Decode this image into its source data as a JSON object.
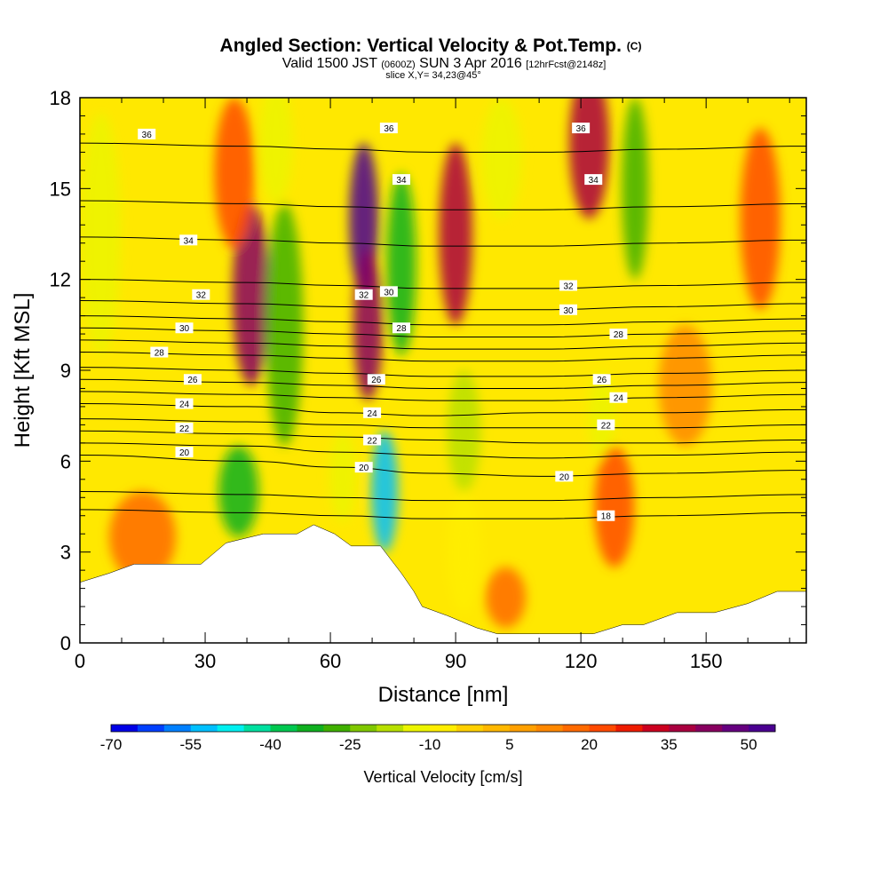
{
  "header": {
    "title_main": "Angled Section: Vertical Velocity & Pot.Temp.",
    "title_unit": "(C)",
    "valid_prefix": "Valid 1500 JST",
    "valid_utc": "(0600Z)",
    "valid_date": "SUN 3 Apr 2016",
    "forecast": "[12hrFcst@2148z]",
    "slice": "slice X,Y= 34,23@45°"
  },
  "chart_data": {
    "type": "heatmap",
    "title": "Angled Section: Vertical Velocity & Pot.Temp. (C)",
    "xlabel": "Distance [nm]",
    "ylabel": "Height [Kft MSL]",
    "xlim": [
      0,
      174
    ],
    "ylim": [
      0,
      18
    ],
    "x_ticks": [
      0,
      30,
      60,
      90,
      120,
      150
    ],
    "y_ticks": [
      0,
      3,
      6,
      9,
      12,
      15,
      18
    ],
    "colorbar": {
      "label": "Vertical Velocity [cm/s]",
      "min": -70,
      "max": 55,
      "step": 5,
      "tick_labels": [
        -70,
        -55,
        -40,
        -25,
        -10,
        5,
        20,
        35,
        50
      ],
      "colors": [
        "#0000e6",
        "#0040ff",
        "#0080ff",
        "#00c0ff",
        "#00f0f0",
        "#00e0a0",
        "#00c850",
        "#10b020",
        "#40b000",
        "#80c800",
        "#b8e000",
        "#ecf500",
        "#ffee00",
        "#ffd000",
        "#ffb800",
        "#ffa000",
        "#ff8800",
        "#ff6a00",
        "#ff4a00",
        "#ee1c00",
        "#cc0020",
        "#aa0040",
        "#880060",
        "#660080",
        "#4a0090"
      ]
    },
    "velocity_features": [
      {
        "x": 5,
        "h": 13.5,
        "v": -15,
        "sx": 3,
        "sy": 4.0
      },
      {
        "x": 41,
        "h": 11.5,
        "v": 42,
        "sx": 2.8,
        "sy": 3.0
      },
      {
        "x": 37,
        "h": 15.5,
        "v": 22,
        "sx": 3,
        "sy": 2.5
      },
      {
        "x": 49,
        "h": 10.5,
        "v": -30,
        "sx": 2.8,
        "sy": 4.0
      },
      {
        "x": 47,
        "h": 16.5,
        "v": -15,
        "sx": 2.5,
        "sy": 2.0
      },
      {
        "x": 38,
        "h": 5.0,
        "v": -32,
        "sx": 3,
        "sy": 1.5
      },
      {
        "x": 68,
        "h": 14.0,
        "v": 55,
        "sx": 2.2,
        "sy": 2.5
      },
      {
        "x": 69,
        "h": 10.5,
        "v": 40,
        "sx": 2.2,
        "sy": 2.5
      },
      {
        "x": 77,
        "h": 12.5,
        "v": -32,
        "sx": 2.2,
        "sy": 3.0
      },
      {
        "x": 73,
        "h": 5.0,
        "v": -55,
        "sx": 2.0,
        "sy": 2.0
      },
      {
        "x": 63,
        "h": 5.5,
        "v": -15,
        "sx": 2.0,
        "sy": 1.5
      },
      {
        "x": 90,
        "h": 13.5,
        "v": 35,
        "sx": 2.5,
        "sy": 3.0
      },
      {
        "x": 92,
        "h": 7.0,
        "v": -20,
        "sx": 2.5,
        "sy": 2.0
      },
      {
        "x": 92,
        "h": 3.0,
        "v": -8,
        "sx": 2.5,
        "sy": 2.0
      },
      {
        "x": 101,
        "h": 16.0,
        "v": -12,
        "sx": 3,
        "sy": 2.0
      },
      {
        "x": 122,
        "h": 16.5,
        "v": 38,
        "sx": 3,
        "sy": 2.5
      },
      {
        "x": 133,
        "h": 15.0,
        "v": -30,
        "sx": 2,
        "sy": 3.0
      },
      {
        "x": 125,
        "h": 7.5,
        "v": -15,
        "sx": 2,
        "sy": 1.5
      },
      {
        "x": 163,
        "h": 14.0,
        "v": 22,
        "sx": 3,
        "sy": 3.0
      },
      {
        "x": 128,
        "h": 4.5,
        "v": 20,
        "sx": 3,
        "sy": 2.0
      },
      {
        "x": 15,
        "h": 3.5,
        "v": 18,
        "sx": 5,
        "sy": 1.5
      },
      {
        "x": 102,
        "h": 1.5,
        "v": 15,
        "sx": 3,
        "sy": 1.0
      },
      {
        "x": 145,
        "h": 8.5,
        "v": 12,
        "sx": 4,
        "sy": 2.0
      }
    ],
    "theta_isolines": [
      {
        "level": 18,
        "points": [
          [
            0,
            4.4
          ],
          [
            40,
            4.3
          ],
          [
            62,
            4.2
          ],
          [
            84,
            4.1
          ],
          [
            110,
            4.1
          ],
          [
            140,
            4.2
          ],
          [
            174,
            4.3
          ]
        ]
      },
      {
        "level": 19,
        "points": [
          [
            0,
            5.0
          ],
          [
            40,
            4.9
          ],
          [
            62,
            4.8
          ],
          [
            84,
            4.7
          ],
          [
            110,
            4.7
          ],
          [
            140,
            4.8
          ],
          [
            174,
            4.9
          ]
        ]
      },
      {
        "level": 20,
        "points": [
          [
            0,
            6.2
          ],
          [
            40,
            6.0
          ],
          [
            62,
            5.8
          ],
          [
            84,
            5.6
          ],
          [
            110,
            5.5
          ],
          [
            140,
            5.6
          ],
          [
            174,
            5.7
          ]
        ]
      },
      {
        "level": 21,
        "points": [
          [
            0,
            6.6
          ],
          [
            40,
            6.5
          ],
          [
            62,
            6.3
          ],
          [
            84,
            6.2
          ],
          [
            110,
            6.1
          ],
          [
            140,
            6.2
          ],
          [
            174,
            6.3
          ]
        ]
      },
      {
        "level": 22,
        "points": [
          [
            0,
            7.0
          ],
          [
            40,
            6.9
          ],
          [
            62,
            6.8
          ],
          [
            84,
            6.7
          ],
          [
            110,
            6.6
          ],
          [
            140,
            6.6
          ],
          [
            174,
            6.7
          ]
        ]
      },
      {
        "level": 23,
        "points": [
          [
            0,
            7.4
          ],
          [
            40,
            7.3
          ],
          [
            62,
            7.2
          ],
          [
            84,
            7.1
          ],
          [
            110,
            7.1
          ],
          [
            140,
            7.1
          ],
          [
            174,
            7.2
          ]
        ]
      },
      {
        "level": 24,
        "points": [
          [
            0,
            7.9
          ],
          [
            40,
            7.8
          ],
          [
            62,
            7.6
          ],
          [
            84,
            7.5
          ],
          [
            110,
            7.6
          ],
          [
            140,
            7.6
          ],
          [
            174,
            7.7
          ]
        ]
      },
      {
        "level": 25,
        "points": [
          [
            0,
            8.3
          ],
          [
            40,
            8.2
          ],
          [
            62,
            8.1
          ],
          [
            84,
            8.0
          ],
          [
            110,
            8.0
          ],
          [
            140,
            8.1
          ],
          [
            174,
            8.2
          ]
        ]
      },
      {
        "level": 26,
        "points": [
          [
            0,
            8.7
          ],
          [
            40,
            8.6
          ],
          [
            62,
            8.5
          ],
          [
            84,
            8.4
          ],
          [
            110,
            8.4
          ],
          [
            140,
            8.5
          ],
          [
            174,
            8.6
          ]
        ]
      },
      {
        "level": 27,
        "points": [
          [
            0,
            9.1
          ],
          [
            40,
            9.0
          ],
          [
            62,
            8.9
          ],
          [
            84,
            8.8
          ],
          [
            110,
            8.8
          ],
          [
            140,
            8.9
          ],
          [
            174,
            9.0
          ]
        ]
      },
      {
        "level": 28,
        "points": [
          [
            0,
            9.6
          ],
          [
            40,
            9.5
          ],
          [
            62,
            9.4
          ],
          [
            84,
            9.3
          ],
          [
            110,
            9.3
          ],
          [
            140,
            9.4
          ],
          [
            174,
            9.5
          ]
        ]
      },
      {
        "level": 29,
        "points": [
          [
            0,
            10.0
          ],
          [
            40,
            9.9
          ],
          [
            62,
            9.8
          ],
          [
            84,
            9.7
          ],
          [
            110,
            9.7
          ],
          [
            140,
            9.8
          ],
          [
            174,
            9.9
          ]
        ]
      },
      {
        "level": 30,
        "points": [
          [
            0,
            10.4
          ],
          [
            40,
            10.3
          ],
          [
            62,
            10.2
          ],
          [
            84,
            10.1
          ],
          [
            110,
            10.1
          ],
          [
            140,
            10.2
          ],
          [
            174,
            10.3
          ]
        ]
      },
      {
        "level": 31,
        "points": [
          [
            0,
            10.8
          ],
          [
            40,
            10.7
          ],
          [
            62,
            10.6
          ],
          [
            84,
            10.5
          ],
          [
            110,
            10.5
          ],
          [
            140,
            10.6
          ],
          [
            174,
            10.7
          ]
        ]
      },
      {
        "level": 32,
        "points": [
          [
            0,
            11.3
          ],
          [
            40,
            11.2
          ],
          [
            62,
            11.1
          ],
          [
            84,
            11.0
          ],
          [
            110,
            11.0
          ],
          [
            140,
            11.1
          ],
          [
            174,
            11.2
          ]
        ]
      },
      {
        "level": 33,
        "points": [
          [
            0,
            12.0
          ],
          [
            40,
            11.9
          ],
          [
            62,
            11.8
          ],
          [
            84,
            11.7
          ],
          [
            110,
            11.7
          ],
          [
            140,
            11.8
          ],
          [
            174,
            11.9
          ]
        ]
      },
      {
        "level": 34,
        "points": [
          [
            0,
            13.4
          ],
          [
            40,
            13.3
          ],
          [
            62,
            13.2
          ],
          [
            84,
            13.1
          ],
          [
            110,
            13.1
          ],
          [
            140,
            13.2
          ],
          [
            174,
            13.3
          ]
        ]
      },
      {
        "level": 35,
        "points": [
          [
            0,
            14.6
          ],
          [
            40,
            14.5
          ],
          [
            62,
            14.4
          ],
          [
            84,
            14.3
          ],
          [
            110,
            14.3
          ],
          [
            140,
            14.4
          ],
          [
            174,
            14.5
          ]
        ]
      },
      {
        "level": 36,
        "points": [
          [
            0,
            16.5
          ],
          [
            40,
            16.4
          ],
          [
            62,
            16.3
          ],
          [
            84,
            16.2
          ],
          [
            110,
            16.2
          ],
          [
            140,
            16.3
          ],
          [
            174,
            16.4
          ]
        ]
      }
    ],
    "contour_labels": [
      {
        "text": "36",
        "x": 16,
        "h": 16.8
      },
      {
        "text": "36",
        "x": 74,
        "h": 17.0
      },
      {
        "text": "36",
        "x": 120,
        "h": 17.0
      },
      {
        "text": "34",
        "x": 26,
        "h": 13.3
      },
      {
        "text": "34",
        "x": 77,
        "h": 15.3
      },
      {
        "text": "34",
        "x": 123,
        "h": 15.3
      },
      {
        "text": "32",
        "x": 29,
        "h": 11.5
      },
      {
        "text": "32",
        "x": 68,
        "h": 11.5
      },
      {
        "text": "32",
        "x": 117,
        "h": 11.8
      },
      {
        "text": "30",
        "x": 25,
        "h": 10.4
      },
      {
        "text": "30",
        "x": 74,
        "h": 11.6
      },
      {
        "text": "30",
        "x": 117,
        "h": 11.0
      },
      {
        "text": "28",
        "x": 19,
        "h": 9.6
      },
      {
        "text": "28",
        "x": 77,
        "h": 10.4
      },
      {
        "text": "28",
        "x": 129,
        "h": 10.2
      },
      {
        "text": "26",
        "x": 27,
        "h": 8.7
      },
      {
        "text": "26",
        "x": 71,
        "h": 8.7
      },
      {
        "text": "26",
        "x": 125,
        "h": 8.7
      },
      {
        "text": "24",
        "x": 25,
        "h": 7.9
      },
      {
        "text": "24",
        "x": 70,
        "h": 7.6
      },
      {
        "text": "24",
        "x": 129,
        "h": 8.1
      },
      {
        "text": "22",
        "x": 25,
        "h": 7.1
      },
      {
        "text": "22",
        "x": 70,
        "h": 6.7
      },
      {
        "text": "22",
        "x": 126,
        "h": 7.2
      },
      {
        "text": "20",
        "x": 25,
        "h": 6.3
      },
      {
        "text": "20",
        "x": 68,
        "h": 5.8
      },
      {
        "text": "20",
        "x": 116,
        "h": 5.5
      },
      {
        "text": "18",
        "x": 126,
        "h": 4.2
      }
    ],
    "terrain": [
      [
        0,
        2
      ],
      [
        7,
        2.3
      ],
      [
        13,
        2.6
      ],
      [
        29,
        2.6
      ],
      [
        35,
        3.3
      ],
      [
        44,
        3.6
      ],
      [
        52,
        3.6
      ],
      [
        56,
        3.9
      ],
      [
        61,
        3.6
      ],
      [
        65,
        3.2
      ],
      [
        72,
        3.2
      ],
      [
        77,
        2.3
      ],
      [
        80,
        1.7
      ],
      [
        82,
        1.2
      ],
      [
        88,
        0.9
      ],
      [
        95,
        0.5
      ],
      [
        100,
        0.3
      ],
      [
        110,
        0.3
      ],
      [
        123,
        0.3
      ],
      [
        130,
        0.6
      ],
      [
        135,
        0.6
      ],
      [
        143,
        1.0
      ],
      [
        152,
        1.0
      ],
      [
        160,
        1.3
      ],
      [
        167,
        1.7
      ],
      [
        174,
        1.7
      ]
    ]
  }
}
